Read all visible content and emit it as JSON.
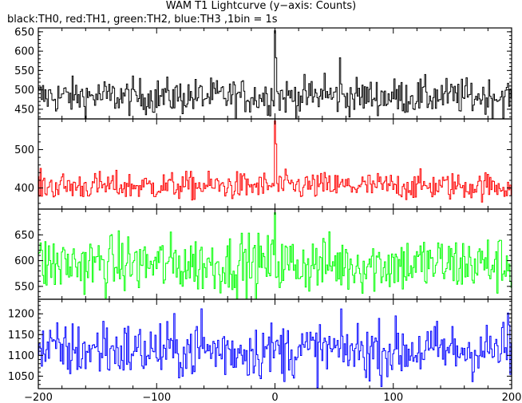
{
  "chart_data": {
    "type": "line",
    "title": "WAM T1 Lightcurve (y−axis: Counts)",
    "subtitle": "black:TH0, red:TH1, green:TH2, blue:TH3 ,1bin = 1s",
    "xlim": [
      -200,
      200
    ],
    "x_ticks": [
      -200,
      -100,
      0,
      100,
      200
    ],
    "x_tick_labels": [
      "−200",
      "−100",
      "0",
      "100",
      "200"
    ],
    "grid": false,
    "panels": [
      {
        "name": "TH0",
        "color": "#000000",
        "ylim": [
          425,
          660
        ],
        "y_ticks": [
          450,
          500,
          550,
          600,
          650
        ],
        "baseline": 483,
        "noise": 27,
        "peaks": [
          {
            "x": 0,
            "height": 170
          },
          {
            "x": 1,
            "height": 100
          },
          {
            "x": 55,
            "height": 100
          },
          {
            "x": 42,
            "height": 60
          }
        ]
      },
      {
        "name": "TH1",
        "color": "#ff0000",
        "ylim": [
          345,
          580
        ],
        "y_ticks": [
          400,
          500
        ],
        "baseline": 405,
        "noise": 21,
        "peaks": [
          {
            "x": 0,
            "height": 170
          },
          {
            "x": 1,
            "height": 110
          }
        ]
      },
      {
        "name": "TH2",
        "color": "#00ff00",
        "ylim": [
          525,
          700
        ],
        "y_ticks": [
          550,
          600,
          650
        ],
        "baseline": 593,
        "noise": 33,
        "peaks": [
          {
            "x": 0,
            "height": 100
          },
          {
            "x": -28,
            "height": 60
          }
        ]
      },
      {
        "name": "TH3",
        "color": "#0000ff",
        "ylim": [
          1020,
          1235
        ],
        "y_ticks": [
          1050,
          1100,
          1150,
          1200
        ],
        "baseline": 1112,
        "noise": 40,
        "peaks": [
          {
            "x": -62,
            "height": 100
          },
          {
            "x": 197,
            "height": 90
          },
          {
            "x": -145,
            "height": 70
          }
        ]
      }
    ]
  }
}
